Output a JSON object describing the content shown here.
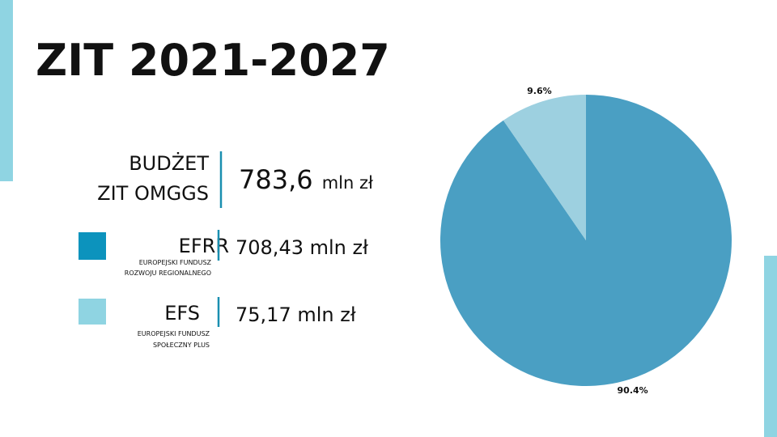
{
  "slide": {
    "title": "ZIT 2021-2027",
    "budget_label": [
      "BUDŻET",
      "ZIT OMGGS"
    ],
    "budget_amount": "783,6",
    "budget_unit": "mln zł",
    "items": [
      {
        "color": "#0c93bd",
        "amount": "708,43 mln zł",
        "description": [
          "EUROPEJSKI FUNDUSZ",
          "ROZWOJU REGIONALNEGO"
        ]
      },
      {
        "color": "#8fd4e2",
        "amount": "75,17 mln zł",
        "description": [
          "EUROPEJSKI FUNDUSZ",
          "SPOŁECZNY PLUS"
        ]
      }
    ]
  },
  "chart_data": {
    "type": "pie",
    "categories": [
      "EFRR",
      "EFS"
    ],
    "values": [
      90.4,
      9.6
    ],
    "value_labels": [
      "90.4%",
      "9.6%"
    ],
    "colors": [
      "#4a9fc3",
      "#9dd0e0"
    ]
  }
}
